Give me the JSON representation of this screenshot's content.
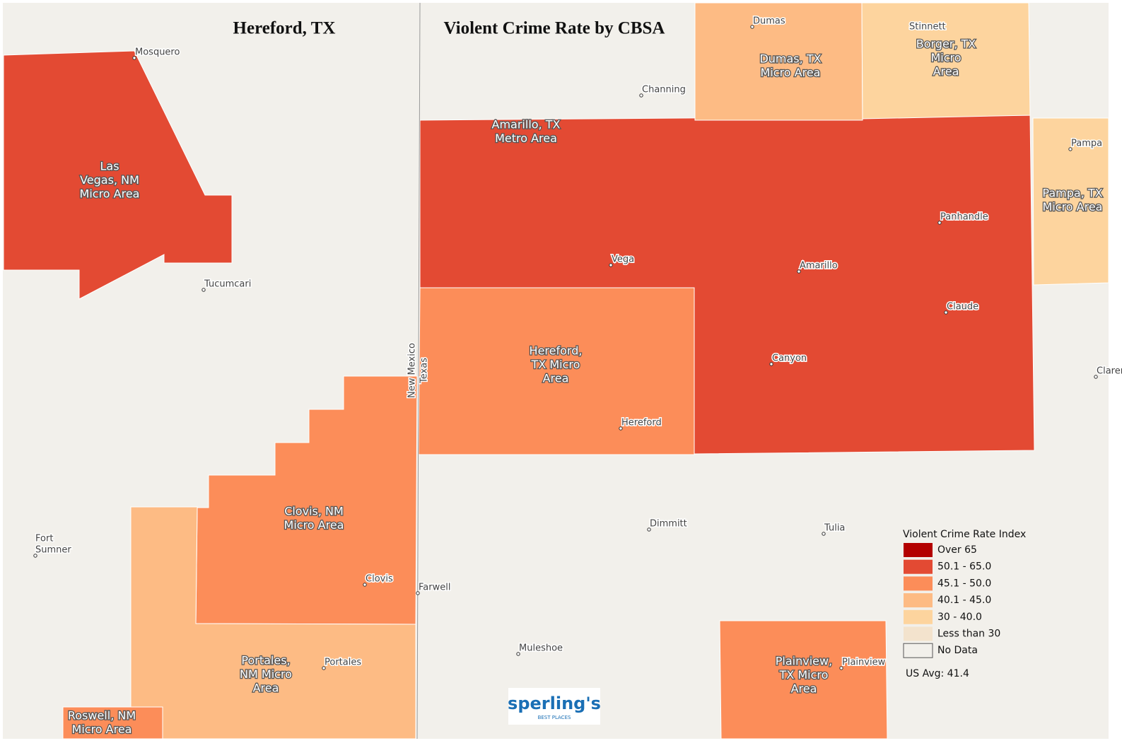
{
  "header": {
    "title": "Hereford, TX",
    "subtitle": "Violent Crime Rate by CBSA"
  },
  "regions": [
    {
      "label": [
        "Las",
        "Vegas, NM",
        "Micro Area"
      ],
      "color": "#e34a33"
    },
    {
      "label": [
        "Amarillo, TX",
        "Metro Area"
      ],
      "color": "#e34a33"
    },
    {
      "label": [
        "Hereford,",
        "TX Micro",
        "Area"
      ],
      "color": "#fc8d59"
    },
    {
      "label": [
        "Dumas, TX",
        "Micro Area"
      ],
      "color": "#fdbb84"
    },
    {
      "label": [
        "Borger, TX",
        "Micro",
        "Area"
      ],
      "color": "#fdd49e"
    },
    {
      "label": [
        "Pampa, TX",
        "Micro Area"
      ],
      "color": "#fdd49e"
    },
    {
      "label": [
        "Clovis, NM",
        "Micro Area"
      ],
      "color": "#fc8d59"
    },
    {
      "label": [
        "Portales,",
        "NM Micro",
        "Area"
      ],
      "color": "#fdbb84"
    },
    {
      "label": [
        "Roswell, NM",
        "Micro Area"
      ],
      "color": "#fc8d59"
    },
    {
      "label": [
        "Plainview,",
        "TX Micro",
        "Area"
      ],
      "color": "#fc8d59"
    }
  ],
  "cities": [
    "Mosquero",
    "Dumas",
    "Stinnett",
    "Channing",
    "Pampa",
    "Panhandle",
    "Vega",
    "Amarillo",
    "Tucumcari",
    "Claude",
    "Canyon",
    "Clarendon",
    "Hereford",
    "Dimmitt",
    "Tulia",
    [
      "Fort",
      "Sumner"
    ],
    "Clovis",
    "Farwell",
    "Muleshoe",
    "Portales",
    "Plainview"
  ],
  "states": [
    "New Mexico",
    "Texas"
  ],
  "legend": {
    "title": "Violent Crime Rate Index",
    "items": [
      {
        "label": "Over 65",
        "color": "#b30000"
      },
      {
        "label": "50.1 - 65.0",
        "color": "#e34a33"
      },
      {
        "label": "45.1 - 50.0",
        "color": "#fc8d59"
      },
      {
        "label": "40.1 - 45.0",
        "color": "#fdbb84"
      },
      {
        "label": "30 - 40.0",
        "color": "#fdd49e"
      },
      {
        "label": "Less than 30",
        "color": "#f3e3cd"
      },
      {
        "label": "No Data",
        "color": "#f2f0eb"
      }
    ],
    "note": "US Avg: 41.4"
  },
  "logo": {
    "name": "sperling's",
    "tagline": "BEST PLACES"
  }
}
